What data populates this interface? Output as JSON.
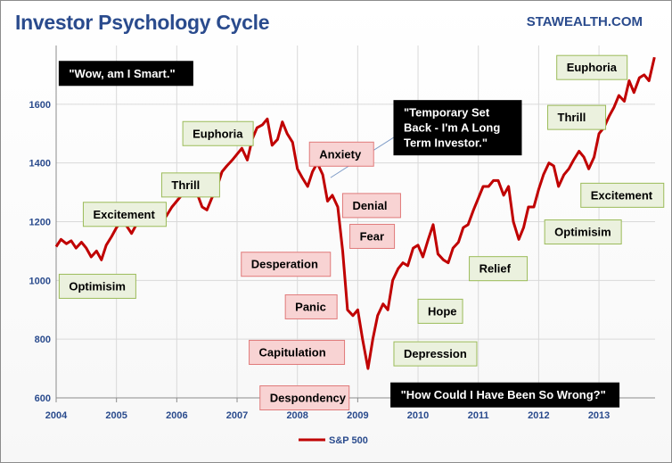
{
  "header": {
    "title": "Investor Psychology Cycle",
    "brand": "STAWEALTH.COM"
  },
  "colors": {
    "line": "#c00000",
    "green_fill": "#ebf1de",
    "red_fill": "#f8d3d3",
    "black_fill": "#000000",
    "grid": "#d9d9d9",
    "axis_text": "#2a4b8d"
  },
  "chart_data": {
    "type": "line",
    "title": "Investor Psychology Cycle",
    "xlim": [
      2004,
      2013.93
    ],
    "ylim": [
      600,
      1800
    ],
    "y_ticks": [
      600,
      800,
      1000,
      1200,
      1400,
      1600
    ],
    "x_ticks": [
      "2004",
      "2005",
      "2006",
      "2007",
      "2008",
      "2009",
      "2010",
      "2011",
      "2012",
      "2013"
    ],
    "grid": true,
    "legend_position": "bottom",
    "series": [
      {
        "name": "S&P 500",
        "color": "#c00000",
        "points": [
          [
            2004.0,
            1115
          ],
          [
            2004.08,
            1140
          ],
          [
            2004.17,
            1125
          ],
          [
            2004.25,
            1135
          ],
          [
            2004.33,
            1110
          ],
          [
            2004.42,
            1130
          ],
          [
            2004.5,
            1110
          ],
          [
            2004.58,
            1080
          ],
          [
            2004.67,
            1100
          ],
          [
            2004.75,
            1070
          ],
          [
            2004.83,
            1120
          ],
          [
            2004.92,
            1150
          ],
          [
            2005.0,
            1180
          ],
          [
            2005.08,
            1200
          ],
          [
            2005.17,
            1185
          ],
          [
            2005.25,
            1160
          ],
          [
            2005.33,
            1190
          ],
          [
            2005.42,
            1195
          ],
          [
            2005.5,
            1230
          ],
          [
            2005.58,
            1210
          ],
          [
            2005.67,
            1225
          ],
          [
            2005.75,
            1200
          ],
          [
            2005.83,
            1220
          ],
          [
            2005.92,
            1250
          ],
          [
            2006.0,
            1270
          ],
          [
            2006.08,
            1290
          ],
          [
            2006.17,
            1300
          ],
          [
            2006.25,
            1310
          ],
          [
            2006.33,
            1300
          ],
          [
            2006.42,
            1250
          ],
          [
            2006.5,
            1240
          ],
          [
            2006.58,
            1280
          ],
          [
            2006.67,
            1320
          ],
          [
            2006.75,
            1370
          ],
          [
            2006.83,
            1390
          ],
          [
            2006.92,
            1410
          ],
          [
            2007.0,
            1430
          ],
          [
            2007.08,
            1450
          ],
          [
            2007.17,
            1410
          ],
          [
            2007.25,
            1480
          ],
          [
            2007.33,
            1520
          ],
          [
            2007.42,
            1530
          ],
          [
            2007.5,
            1550
          ],
          [
            2007.58,
            1460
          ],
          [
            2007.67,
            1480
          ],
          [
            2007.75,
            1540
          ],
          [
            2007.83,
            1500
          ],
          [
            2007.92,
            1470
          ],
          [
            2008.0,
            1380
          ],
          [
            2008.08,
            1350
          ],
          [
            2008.17,
            1320
          ],
          [
            2008.25,
            1370
          ],
          [
            2008.33,
            1400
          ],
          [
            2008.42,
            1360
          ],
          [
            2008.5,
            1270
          ],
          [
            2008.58,
            1290
          ],
          [
            2008.67,
            1250
          ],
          [
            2008.75,
            1100
          ],
          [
            2008.83,
            900
          ],
          [
            2008.92,
            880
          ],
          [
            2009.0,
            900
          ],
          [
            2009.08,
            800
          ],
          [
            2009.17,
            700
          ],
          [
            2009.25,
            800
          ],
          [
            2009.33,
            880
          ],
          [
            2009.42,
            920
          ],
          [
            2009.5,
            900
          ],
          [
            2009.58,
            1000
          ],
          [
            2009.67,
            1040
          ],
          [
            2009.75,
            1060
          ],
          [
            2009.83,
            1050
          ],
          [
            2009.92,
            1110
          ],
          [
            2010.0,
            1120
          ],
          [
            2010.08,
            1080
          ],
          [
            2010.17,
            1140
          ],
          [
            2010.25,
            1190
          ],
          [
            2010.33,
            1090
          ],
          [
            2010.42,
            1070
          ],
          [
            2010.5,
            1060
          ],
          [
            2010.58,
            1110
          ],
          [
            2010.67,
            1130
          ],
          [
            2010.75,
            1180
          ],
          [
            2010.83,
            1190
          ],
          [
            2010.92,
            1240
          ],
          [
            2011.0,
            1280
          ],
          [
            2011.08,
            1320
          ],
          [
            2011.17,
            1320
          ],
          [
            2011.25,
            1340
          ],
          [
            2011.33,
            1340
          ],
          [
            2011.42,
            1290
          ],
          [
            2011.5,
            1320
          ],
          [
            2011.58,
            1200
          ],
          [
            2011.67,
            1140
          ],
          [
            2011.75,
            1180
          ],
          [
            2011.83,
            1250
          ],
          [
            2011.92,
            1250
          ],
          [
            2012.0,
            1310
          ],
          [
            2012.08,
            1360
          ],
          [
            2012.17,
            1400
          ],
          [
            2012.25,
            1390
          ],
          [
            2012.33,
            1320
          ],
          [
            2012.42,
            1360
          ],
          [
            2012.5,
            1380
          ],
          [
            2012.58,
            1410
          ],
          [
            2012.67,
            1440
          ],
          [
            2012.75,
            1420
          ],
          [
            2012.83,
            1380
          ],
          [
            2012.92,
            1420
          ],
          [
            2013.0,
            1500
          ],
          [
            2013.08,
            1520
          ],
          [
            2013.17,
            1560
          ],
          [
            2013.25,
            1590
          ],
          [
            2013.33,
            1630
          ],
          [
            2013.42,
            1610
          ],
          [
            2013.5,
            1680
          ],
          [
            2013.58,
            1640
          ],
          [
            2013.67,
            1690
          ],
          [
            2013.75,
            1700
          ],
          [
            2013.83,
            1680
          ],
          [
            2013.92,
            1760
          ]
        ]
      }
    ],
    "annotations": [
      {
        "text": "\"Wow, am I Smart.\"",
        "style": "black",
        "x": 2004.05,
        "y": 1705
      },
      {
        "text": "Optimisim",
        "style": "green",
        "x": 2004.05,
        "y": 980
      },
      {
        "text": "Excitement",
        "style": "green",
        "x": 2004.45,
        "y": 1225
      },
      {
        "text": "Thrill",
        "style": "green",
        "x": 2005.75,
        "y": 1325
      },
      {
        "text": "Euphoria",
        "style": "green",
        "x": 2006.1,
        "y": 1500
      },
      {
        "text": "Anxiety",
        "style": "red",
        "x": 2008.2,
        "y": 1430
      },
      {
        "text": "\"Temporary Set Back - I'm A Long Term Investor.\"",
        "style": "black",
        "x": 2009.6,
        "y": 1520
      },
      {
        "text": "Denial",
        "style": "red",
        "x": 2008.75,
        "y": 1255
      },
      {
        "text": "Fear",
        "style": "red",
        "x": 2008.87,
        "y": 1150
      },
      {
        "text": "Desperation",
        "style": "red",
        "x": 2007.07,
        "y": 1055
      },
      {
        "text": "Panic",
        "style": "red",
        "x": 2007.8,
        "y": 910
      },
      {
        "text": "Capitulation",
        "style": "red",
        "x": 2007.2,
        "y": 755
      },
      {
        "text": "Despondency",
        "style": "red",
        "x": 2007.38,
        "y": 600
      },
      {
        "text": "Depression",
        "style": "green",
        "x": 2009.6,
        "y": 750
      },
      {
        "text": "\"How Could I Have Been So Wrong?\"",
        "style": "black",
        "x": 2009.55,
        "y": 610
      },
      {
        "text": "Hope",
        "style": "green",
        "x": 2010.0,
        "y": 895
      },
      {
        "text": "Relief",
        "style": "green",
        "x": 2010.85,
        "y": 1040
      },
      {
        "text": "Euphoria",
        "style": "green",
        "x": 2012.3,
        "y": 1725
      },
      {
        "text": "Thrill",
        "style": "green",
        "x": 2012.15,
        "y": 1555
      },
      {
        "text": "Excitement",
        "style": "green",
        "x": 2012.7,
        "y": 1290
      },
      {
        "text": "Optimisim",
        "style": "green",
        "x": 2012.1,
        "y": 1165
      }
    ]
  },
  "legend": {
    "label": "S&P 500"
  }
}
